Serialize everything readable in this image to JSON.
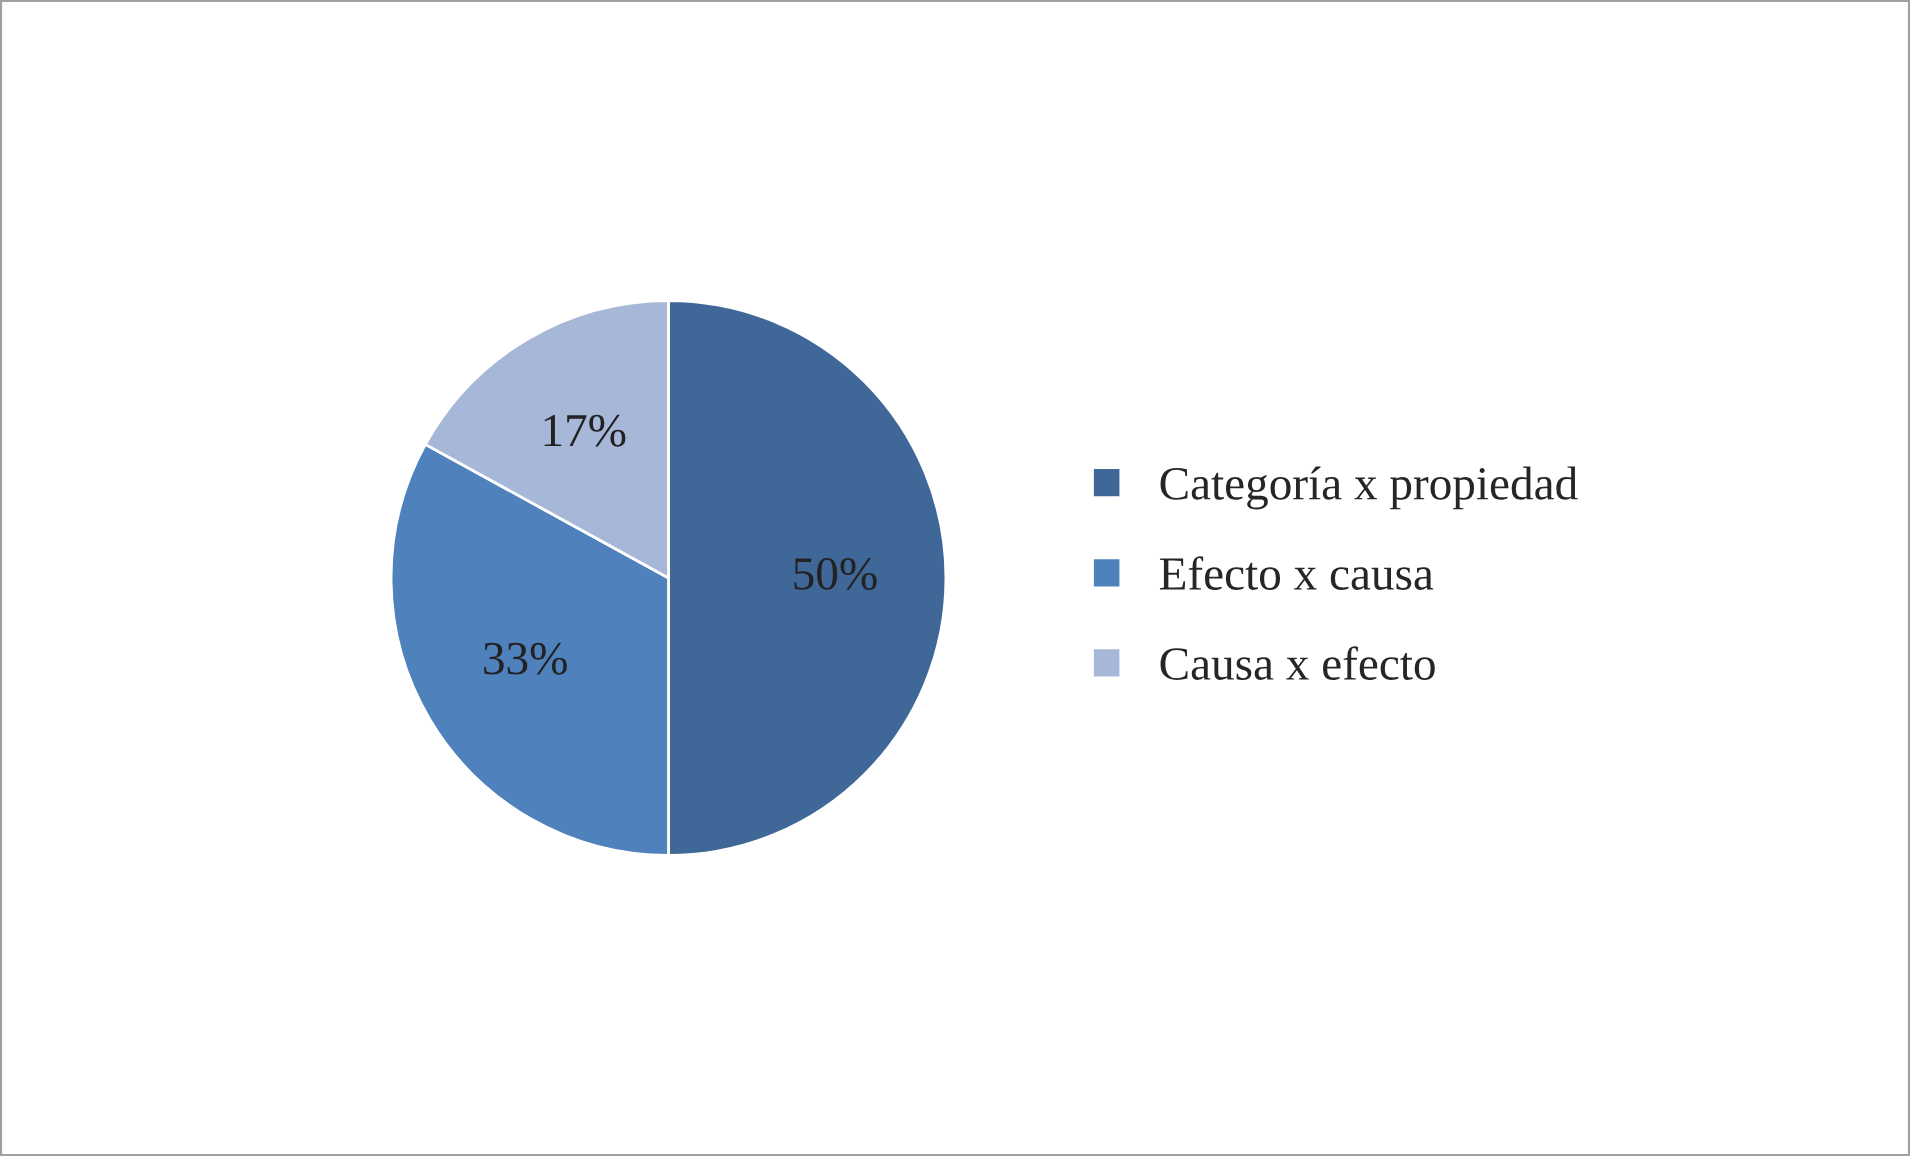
{
  "chart_data": {
    "type": "pie",
    "categories": [
      "Categoría x propiedad",
      "Efecto x causa",
      "Causa x efecto"
    ],
    "values": [
      50,
      33,
      17
    ],
    "colors": [
      "#3f6899",
      "#4f81bd",
      "#a6b7d8"
    ],
    "value_labels": [
      "50%",
      "33%",
      "17%"
    ],
    "legend": "right"
  }
}
